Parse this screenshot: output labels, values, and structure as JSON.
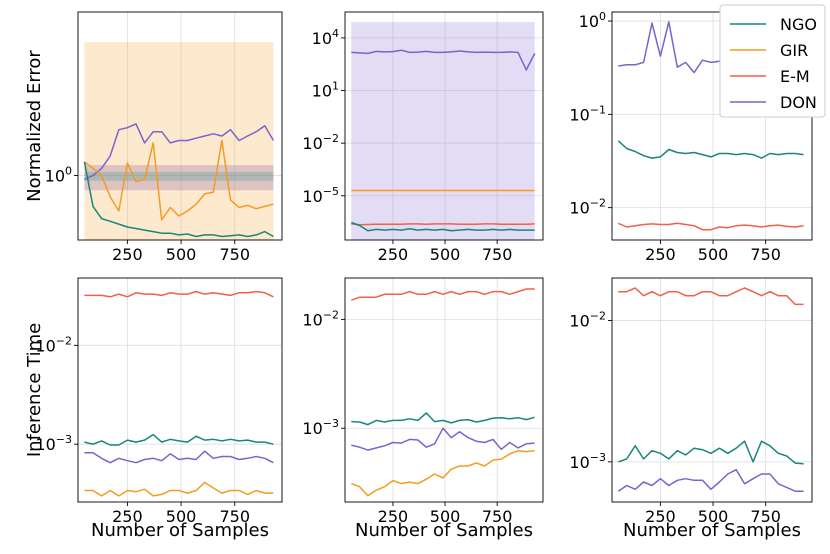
{
  "colors": {
    "NGO": "#17877a",
    "GIR": "#f59b1f",
    "E-M": "#f25f4c",
    "DON": "#7b63cf"
  },
  "legend": [
    "NGO",
    "GIR",
    "E-M",
    "DON"
  ],
  "chart_data": [
    {
      "type": "line",
      "panel": "top-left",
      "yscale": "log",
      "ylabel": "Normalized Error",
      "xlabel": "",
      "xlim": [
        20,
        970
      ],
      "ylim": [
        0.42,
        9
      ],
      "x": [
        50,
        90,
        130,
        170,
        210,
        250,
        290,
        330,
        370,
        410,
        450,
        490,
        530,
        570,
        610,
        650,
        690,
        730,
        770,
        810,
        850,
        890,
        930
      ],
      "xticks": [
        250,
        500,
        750
      ],
      "yticks": [
        {
          "v": 1,
          "label": "10^0"
        }
      ],
      "series": [
        {
          "name": "DON",
          "values": [
            0.95,
            1.0,
            1.1,
            1.3,
            1.85,
            1.9,
            2.0,
            1.55,
            1.8,
            1.8,
            1.55,
            1.6,
            1.6,
            1.65,
            1.7,
            1.75,
            1.7,
            1.85,
            1.6,
            1.7,
            1.8,
            1.95,
            1.6
          ],
          "band": [
            0.82,
            1.15
          ]
        },
        {
          "name": "GIR",
          "values": [
            1.2,
            1.1,
            1.0,
            0.75,
            0.62,
            1.18,
            0.92,
            0.95,
            1.55,
            0.55,
            0.65,
            0.58,
            0.62,
            0.68,
            0.78,
            0.8,
            1.6,
            0.72,
            0.65,
            0.67,
            0.64,
            0.66,
            0.68
          ],
          "band": [
            0.3,
            6.0
          ]
        },
        {
          "name": "NGO",
          "values": [
            1.2,
            0.66,
            0.56,
            0.54,
            0.52,
            0.5,
            0.49,
            0.48,
            0.47,
            0.46,
            0.46,
            0.45,
            0.455,
            0.44,
            0.45,
            0.45,
            0.44,
            0.445,
            0.45,
            0.44,
            0.45,
            0.47,
            0.44
          ],
          "band": [
            0.93,
            1.05
          ]
        }
      ]
    },
    {
      "type": "line",
      "panel": "top-middle",
      "yscale": "log",
      "xlim": [
        20,
        970
      ],
      "ylim": [
        3e-08,
        300000.0
      ],
      "x": [
        50,
        90,
        130,
        170,
        210,
        250,
        290,
        330,
        370,
        410,
        450,
        490,
        530,
        570,
        610,
        650,
        690,
        730,
        770,
        810,
        850,
        890,
        930
      ],
      "xticks": [
        250,
        500,
        750
      ],
      "yticks": [
        {
          "v": 10000.0,
          "label": "10^4"
        },
        {
          "v": 10,
          "label": "10^1"
        },
        {
          "v": 0.01,
          "label": "10^-2"
        },
        {
          "v": 1e-05,
          "label": "10^-5"
        }
      ],
      "series": [
        {
          "name": "DON",
          "values": [
            1500,
            1400,
            1300,
            1700,
            1600,
            1650,
            2000,
            1500,
            1550,
            1700,
            1500,
            1500,
            1600,
            1800,
            1600,
            1500,
            1550,
            1500,
            1500,
            1600,
            1500,
            150,
            1300
          ],
          "band": [
            3e-08,
            80000.0
          ]
        },
        {
          "name": "GIR",
          "values": [
            2e-05,
            2e-05,
            2e-05,
            2e-05,
            2e-05,
            2e-05,
            2e-05,
            2e-05,
            2e-05,
            2e-05,
            2e-05,
            2e-05,
            2e-05,
            2e-05,
            2e-05,
            2e-05,
            2e-05,
            2e-05,
            2e-05,
            2e-05,
            2e-05,
            2e-05,
            2e-05
          ]
        },
        {
          "name": "E-M",
          "values": [
            2.5e-07,
            2.2e-07,
            2.3e-07,
            2.4e-07,
            2.4e-07,
            2.4e-07,
            2.4e-07,
            2.5e-07,
            2.5e-07,
            2.4e-07,
            2.5e-07,
            2.5e-07,
            2.5e-07,
            2.4e-07,
            2.4e-07,
            2.4e-07,
            2.5e-07,
            2.5e-07,
            2.4e-07,
            2.4e-07,
            2.4e-07,
            2.4e-07,
            2.5e-07
          ]
        },
        {
          "name": "NGO",
          "values": [
            3e-07,
            2e-07,
            1e-07,
            1.2e-07,
            1.1e-07,
            1.2e-07,
            1.1e-07,
            1.3e-07,
            1.1e-07,
            1.2e-07,
            1.1e-07,
            1.2e-07,
            1e-07,
            1.1e-07,
            1.2e-07,
            1.1e-07,
            1.1e-07,
            1.2e-07,
            1.1e-07,
            1.2e-07,
            1.1e-07,
            1.1e-07,
            1.1e-07
          ]
        }
      ]
    },
    {
      "type": "line",
      "panel": "top-right",
      "yscale": "log",
      "xlim": [
        20,
        970
      ],
      "ylim": [
        0.0045,
        1.25
      ],
      "x": [
        50,
        90,
        130,
        170,
        210,
        250,
        290,
        330,
        370,
        410,
        450,
        490,
        530,
        570,
        610,
        650,
        690,
        730,
        770,
        810,
        850,
        890,
        930
      ],
      "xticks": [
        250,
        500,
        750
      ],
      "yticks": [
        {
          "v": 1,
          "label": "10^0"
        },
        {
          "v": 0.1,
          "label": "10^-1"
        },
        {
          "v": 0.01,
          "label": "10^-2"
        }
      ],
      "series": [
        {
          "name": "DON",
          "values": [
            0.33,
            0.34,
            0.34,
            0.36,
            0.95,
            0.42,
            0.98,
            0.32,
            0.36,
            0.28,
            0.38,
            0.36,
            0.37,
            0.36,
            0.36,
            0.35,
            0.36,
            0.37,
            0.37,
            0.36,
            0.36,
            0.36,
            0.36
          ]
        },
        {
          "name": "NGO",
          "values": [
            0.052,
            0.043,
            0.04,
            0.036,
            0.034,
            0.035,
            0.042,
            0.039,
            0.038,
            0.039,
            0.037,
            0.035,
            0.038,
            0.038,
            0.037,
            0.038,
            0.037,
            0.034,
            0.038,
            0.037,
            0.038,
            0.038,
            0.037
          ]
        },
        {
          "name": "E-M",
          "values": [
            0.0068,
            0.0062,
            0.0064,
            0.0066,
            0.0067,
            0.0066,
            0.0066,
            0.0068,
            0.0066,
            0.0064,
            0.0058,
            0.0058,
            0.0062,
            0.0061,
            0.0064,
            0.0065,
            0.0064,
            0.0062,
            0.0064,
            0.0065,
            0.0063,
            0.0062,
            0.0064
          ]
        }
      ]
    },
    {
      "type": "line",
      "panel": "bottom-left",
      "yscale": "log",
      "ylabel": "Inference Time",
      "xlabel": "Number of Samples",
      "xlim": [
        20,
        970
      ],
      "ylim": [
        0.00026,
        0.048
      ],
      "x": [
        50,
        90,
        130,
        170,
        210,
        250,
        290,
        330,
        370,
        410,
        450,
        490,
        530,
        570,
        610,
        650,
        690,
        730,
        770,
        810,
        850,
        890,
        930
      ],
      "xticks": [
        250,
        500,
        750
      ],
      "yticks": [
        {
          "v": 0.01,
          "label": "10^-2"
        },
        {
          "v": 0.001,
          "label": "10^-3"
        }
      ],
      "series": [
        {
          "name": "E-M",
          "values": [
            0.032,
            0.032,
            0.032,
            0.031,
            0.033,
            0.031,
            0.034,
            0.033,
            0.033,
            0.032,
            0.034,
            0.033,
            0.033,
            0.035,
            0.033,
            0.034,
            0.033,
            0.032,
            0.034,
            0.034,
            0.035,
            0.034,
            0.031
          ]
        },
        {
          "name": "NGO",
          "values": [
            0.00105,
            0.001,
            0.00108,
            0.00098,
            0.00098,
            0.0011,
            0.00105,
            0.0011,
            0.00125,
            0.00105,
            0.00112,
            0.00108,
            0.00105,
            0.0012,
            0.0011,
            0.00112,
            0.00108,
            0.00112,
            0.00108,
            0.0011,
            0.00105,
            0.00105,
            0.001
          ]
        },
        {
          "name": "DON",
          "values": [
            0.00082,
            0.00082,
            0.00072,
            0.00065,
            0.00072,
            0.00068,
            0.00065,
            0.0007,
            0.00072,
            0.00068,
            0.0008,
            0.0007,
            0.00072,
            0.0007,
            0.00085,
            0.00072,
            0.00075,
            0.00075,
            0.0007,
            0.00072,
            0.00075,
            0.00072,
            0.00065
          ]
        },
        {
          "name": "GIR",
          "values": [
            0.00034,
            0.00034,
            0.0003,
            0.00034,
            0.0003,
            0.00034,
            0.00033,
            0.00035,
            0.0003,
            0.00031,
            0.00034,
            0.00034,
            0.00032,
            0.00034,
            0.00041,
            0.00036,
            0.00032,
            0.00034,
            0.00034,
            0.00031,
            0.00034,
            0.00032,
            0.00032
          ]
        }
      ]
    },
    {
      "type": "line",
      "panel": "bottom-middle",
      "yscale": "log",
      "xlabel": "Number of Samples",
      "xlim": [
        20,
        970
      ],
      "ylim": [
        0.00021,
        0.024
      ],
      "x": [
        50,
        90,
        130,
        170,
        210,
        250,
        290,
        330,
        370,
        410,
        450,
        490,
        530,
        570,
        610,
        650,
        690,
        730,
        770,
        810,
        850,
        890,
        930
      ],
      "xticks": [
        250,
        500,
        750
      ],
      "yticks": [
        {
          "v": 0.01,
          "label": "10^-2"
        },
        {
          "v": 0.001,
          "label": "10^-3"
        }
      ],
      "series": [
        {
          "name": "E-M",
          "values": [
            0.015,
            0.016,
            0.016,
            0.016,
            0.017,
            0.017,
            0.017,
            0.018,
            0.017,
            0.017,
            0.018,
            0.017,
            0.018,
            0.017,
            0.018,
            0.018,
            0.017,
            0.018,
            0.018,
            0.017,
            0.018,
            0.019,
            0.019
          ]
        },
        {
          "name": "NGO",
          "values": [
            0.00115,
            0.00114,
            0.00108,
            0.00118,
            0.00114,
            0.00118,
            0.00118,
            0.00122,
            0.00118,
            0.00138,
            0.00115,
            0.00118,
            0.00112,
            0.00118,
            0.0012,
            0.00114,
            0.00118,
            0.00124,
            0.00125,
            0.00122,
            0.00125,
            0.0012,
            0.00126
          ]
        },
        {
          "name": "DON",
          "values": [
            0.0007,
            0.00067,
            0.00063,
            0.00066,
            0.00069,
            0.00074,
            0.00073,
            0.00079,
            0.00078,
            0.00067,
            0.00072,
            0.001,
            0.00082,
            0.00093,
            0.00082,
            0.00076,
            0.00074,
            0.00079,
            0.00064,
            0.00074,
            0.00066,
            0.00072,
            0.00073
          ]
        },
        {
          "name": "GIR",
          "values": [
            0.00031,
            0.00029,
            0.00024,
            0.00027,
            0.00029,
            0.00033,
            0.00031,
            0.00032,
            0.00031,
            0.00034,
            0.00038,
            0.00035,
            0.00042,
            0.00045,
            0.00045,
            0.00048,
            0.00045,
            0.00051,
            0.00052,
            0.00058,
            0.00062,
            0.00061,
            0.00062
          ]
        }
      ]
    },
    {
      "type": "line",
      "panel": "bottom-right",
      "yscale": "log",
      "xlabel": "Number of Samples",
      "xlim": [
        20,
        970
      ],
      "ylim": [
        0.00052,
        0.02
      ],
      "x": [
        50,
        90,
        130,
        170,
        210,
        250,
        290,
        330,
        370,
        410,
        450,
        490,
        530,
        570,
        610,
        650,
        690,
        730,
        770,
        810,
        850,
        890,
        930
      ],
      "xticks": [
        250,
        500,
        750
      ],
      "yticks": [
        {
          "v": 0.01,
          "label": "10^-2"
        },
        {
          "v": 0.001,
          "label": "10^-3"
        }
      ],
      "series": [
        {
          "name": "E-M",
          "values": [
            0.016,
            0.016,
            0.017,
            0.015,
            0.016,
            0.015,
            0.016,
            0.016,
            0.015,
            0.015,
            0.016,
            0.016,
            0.015,
            0.015,
            0.016,
            0.017,
            0.016,
            0.015,
            0.016,
            0.015,
            0.015,
            0.013,
            0.013
          ]
        },
        {
          "name": "NGO",
          "values": [
            0.001,
            0.00105,
            0.0013,
            0.00105,
            0.0012,
            0.00115,
            0.00105,
            0.0012,
            0.00112,
            0.00125,
            0.00122,
            0.00115,
            0.00125,
            0.00115,
            0.00125,
            0.0014,
            0.001,
            0.0014,
            0.0013,
            0.00115,
            0.0011,
            0.00098,
            0.00097
          ]
        },
        {
          "name": "DON",
          "values": [
            0.00062,
            0.00068,
            0.00064,
            0.00072,
            0.00068,
            0.00076,
            0.00068,
            0.00074,
            0.00076,
            0.00074,
            0.00074,
            0.00064,
            0.00072,
            0.00082,
            0.00088,
            0.0007,
            0.00076,
            0.00082,
            0.00082,
            0.0007,
            0.00066,
            0.00062,
            0.00062
          ]
        }
      ]
    }
  ]
}
